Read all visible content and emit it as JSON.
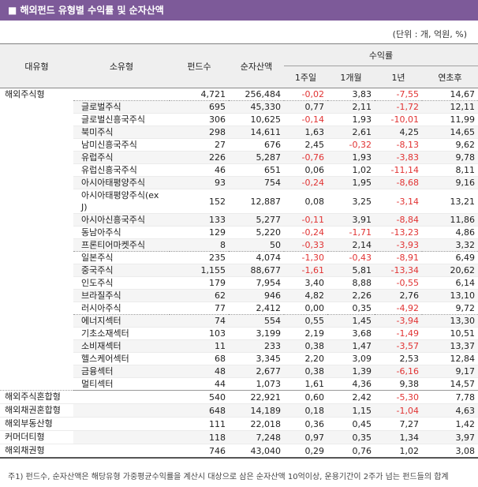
{
  "title_bar": {
    "text": "■ 해외펀드 유형별 수익률 및 순자산액"
  },
  "unit_note": "(단위 : 개, 억원, %)",
  "colors": {
    "accent_purple": "#7d5a99",
    "negative_red": "#e13333",
    "header_bg": "#efefef",
    "row_alt_bg": "#f5f5f5"
  },
  "table": {
    "columns": {
      "major": "대유형",
      "minor": "소유형",
      "funds": "펀드수",
      "nav": "순자산액",
      "returns_group": "수익률",
      "sub": [
        "1주일",
        "1개월",
        "1년",
        "연초후"
      ]
    },
    "rows": [
      {
        "major": "해외주식형",
        "major_rowspan": 23,
        "minor": "",
        "funds": "4,721",
        "nav": "256,484",
        "r": [
          "-0,02",
          "3,83",
          "-7,55",
          "14,67"
        ],
        "shaded": false,
        "sep": "dotted"
      },
      {
        "minor": "글로벌주식",
        "funds": "695",
        "nav": "45,330",
        "r": [
          "0,77",
          "2,11",
          "-1,72",
          "12,11"
        ],
        "shaded": true,
        "sep": "light"
      },
      {
        "minor": "글로벌신흥국주식",
        "funds": "306",
        "nav": "10,625",
        "r": [
          "-0,14",
          "1,93",
          "-10,01",
          "11,99"
        ],
        "shaded": false,
        "sep": "light"
      },
      {
        "minor": "북미주식",
        "funds": "298",
        "nav": "14,611",
        "r": [
          "1,63",
          "2,61",
          "4,25",
          "14,65"
        ],
        "shaded": true,
        "sep": "light"
      },
      {
        "minor": "남미신흥국주식",
        "funds": "27",
        "nav": "676",
        "r": [
          "2,45",
          "-0,32",
          "-8,13",
          "9,62"
        ],
        "shaded": false,
        "sep": "light"
      },
      {
        "minor": "유럽주식",
        "funds": "226",
        "nav": "5,287",
        "r": [
          "-0,76",
          "1,93",
          "-3,83",
          "9,78"
        ],
        "shaded": true,
        "sep": "light"
      },
      {
        "minor": "유럽신흥국주식",
        "funds": "46",
        "nav": "651",
        "r": [
          "0,06",
          "1,02",
          "-11,14",
          "8,11"
        ],
        "shaded": false,
        "sep": "light"
      },
      {
        "minor": "아시아태평양주식",
        "funds": "93",
        "nav": "754",
        "r": [
          "-0,24",
          "1,95",
          "-8,68",
          "9,16"
        ],
        "shaded": true,
        "sep": "light"
      },
      {
        "minor": "아시아태평양주식(ex J)",
        "funds": "152",
        "nav": "12,887",
        "r": [
          "0,08",
          "3,25",
          "-3,14",
          "13,21"
        ],
        "shaded": false,
        "sep": "light"
      },
      {
        "minor": "아시아신흥국주식",
        "funds": "133",
        "nav": "5,277",
        "r": [
          "-0,11",
          "3,91",
          "-8,84",
          "11,86"
        ],
        "shaded": true,
        "sep": "light"
      },
      {
        "minor": "동남아주식",
        "funds": "129",
        "nav": "5,220",
        "r": [
          "-0,24",
          "-1,71",
          "-13,23",
          "4,86"
        ],
        "shaded": false,
        "sep": "light"
      },
      {
        "minor": "프론티어마켓주식",
        "funds": "8",
        "nav": "50",
        "r": [
          "-0,33",
          "2,14",
          "-3,93",
          "3,32"
        ],
        "shaded": true,
        "sep": "dotted"
      },
      {
        "minor": "일본주식",
        "funds": "235",
        "nav": "4,074",
        "r": [
          "-1,30",
          "-0,43",
          "-8,91",
          "6,49"
        ],
        "shaded": false,
        "sep": "light"
      },
      {
        "minor": "중국주식",
        "funds": "1,155",
        "nav": "88,677",
        "r": [
          "-1,61",
          "5,81",
          "-13,34",
          "20,62"
        ],
        "shaded": true,
        "sep": "light"
      },
      {
        "minor": "인도주식",
        "funds": "179",
        "nav": "7,954",
        "r": [
          "3,40",
          "8,88",
          "-0,55",
          "6,14"
        ],
        "shaded": false,
        "sep": "light"
      },
      {
        "minor": "브라질주식",
        "funds": "62",
        "nav": "946",
        "r": [
          "4,82",
          "2,26",
          "2,76",
          "13,10"
        ],
        "shaded": true,
        "sep": "light"
      },
      {
        "minor": "러시아주식",
        "funds": "77",
        "nav": "2,412",
        "r": [
          "0,00",
          "0,35",
          "-4,92",
          "9,72"
        ],
        "shaded": false,
        "sep": "dotted"
      },
      {
        "minor": "에너지섹터",
        "funds": "74",
        "nav": "554",
        "r": [
          "0,55",
          "1,45",
          "-3,94",
          "13,30"
        ],
        "shaded": true,
        "sep": "light"
      },
      {
        "minor": "기초소재섹터",
        "funds": "103",
        "nav": "3,199",
        "r": [
          "2,19",
          "3,68",
          "-1,49",
          "10,51"
        ],
        "shaded": false,
        "sep": "light"
      },
      {
        "minor": "소비재섹터",
        "funds": "11",
        "nav": "233",
        "r": [
          "0,38",
          "1,47",
          "-3,57",
          "13,37"
        ],
        "shaded": true,
        "sep": "light"
      },
      {
        "minor": "헬스케어섹터",
        "funds": "68",
        "nav": "3,345",
        "r": [
          "2,20",
          "3,09",
          "2,53",
          "12,84"
        ],
        "shaded": false,
        "sep": "light"
      },
      {
        "minor": "금융섹터",
        "funds": "48",
        "nav": "2,677",
        "r": [
          "0,38",
          "1,39",
          "-6,16",
          "9,17"
        ],
        "shaded": true,
        "sep": "light"
      },
      {
        "minor": "멀티섹터",
        "funds": "44",
        "nav": "1,073",
        "r": [
          "1,61",
          "4,36",
          "9,38",
          "14,57"
        ],
        "shaded": false,
        "sep": "solid"
      },
      {
        "major": "해외주식혼합형",
        "minor": "",
        "funds": "540",
        "nav": "22,921",
        "r": [
          "0,60",
          "2,42",
          "-5,30",
          "7,78"
        ],
        "shaded": false,
        "sep": "light"
      },
      {
        "major": "해외채권혼합형",
        "minor": "",
        "funds": "648",
        "nav": "14,189",
        "r": [
          "0,18",
          "1,15",
          "-1,04",
          "4,63"
        ],
        "shaded": true,
        "sep": "light"
      },
      {
        "major": "해외부동산형",
        "minor": "",
        "funds": "111",
        "nav": "22,018",
        "r": [
          "0,36",
          "0,45",
          "7,27",
          "1,42"
        ],
        "shaded": false,
        "sep": "light"
      },
      {
        "major": "커머더티형",
        "minor": "",
        "funds": "118",
        "nav": "7,248",
        "r": [
          "0,97",
          "0,35",
          "1,34",
          "3,97"
        ],
        "shaded": true,
        "sep": "light"
      },
      {
        "major": "해외채권형",
        "minor": "",
        "funds": "746",
        "nav": "43,040",
        "r": [
          "0,29",
          "0,76",
          "1,02",
          "3,08"
        ],
        "shaded": false,
        "sep": "none"
      }
    ]
  },
  "footnote": "주1) 펀드수, 순자산액은 해당유형 가중평균수익률을 계산시 대상으로 삼은 순자산액 10억이상, 운용기간이 2주가 넘는 펀드들의 합계"
}
